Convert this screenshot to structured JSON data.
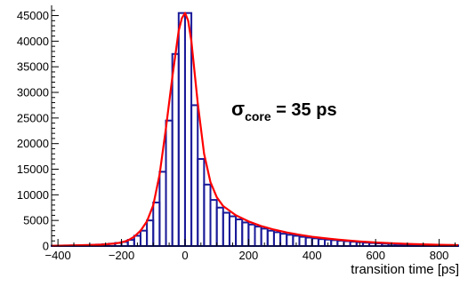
{
  "chart_data": {
    "type": "histogram",
    "xlabel": "transition time [ps]",
    "ylabel": "",
    "title": "",
    "xlim": [
      -420,
      860
    ],
    "ylim": [
      0,
      47000
    ],
    "x_ticks": [
      -400,
      -200,
      0,
      200,
      400,
      600,
      800
    ],
    "y_ticks": [
      0,
      5000,
      10000,
      15000,
      20000,
      25000,
      30000,
      35000,
      40000,
      45000
    ],
    "x_tick_labels": [
      "−400",
      "−200",
      "0",
      "200",
      "400",
      "600",
      "800"
    ],
    "y_tick_labels": [
      "0",
      "5000",
      "10000",
      "15000",
      "20000",
      "25000",
      "30000",
      "35000",
      "40000",
      "45000"
    ],
    "grid": false,
    "legend": "none",
    "annotation": {
      "symbol": "σ",
      "subscript": "core",
      "text": " = 35 ps"
    },
    "colors": {
      "histogram": "#1a1a99",
      "fit": "#ff0000",
      "axis": "#000000"
    },
    "histogram": {
      "bin_width": 20,
      "bins_left": [
        -420,
        -400,
        -380,
        -360,
        -340,
        -320,
        -300,
        -280,
        -260,
        -240,
        -220,
        -200,
        -180,
        -160,
        -140,
        -120,
        -100,
        -80,
        -60,
        -40,
        -20,
        0,
        20,
        40,
        60,
        80,
        100,
        120,
        140,
        160,
        180,
        200,
        220,
        240,
        260,
        280,
        300,
        320,
        340,
        360,
        380,
        400,
        420,
        440,
        460,
        480,
        500,
        520,
        540,
        560,
        580,
        600,
        620,
        640,
        660,
        680,
        700,
        720,
        740,
        760,
        780,
        800,
        820,
        840
      ],
      "counts": [
        50,
        80,
        100,
        120,
        150,
        180,
        220,
        280,
        350,
        450,
        600,
        800,
        1200,
        2000,
        3000,
        5000,
        8500,
        14500,
        24500,
        37500,
        45500,
        45500,
        27500,
        17000,
        12000,
        9000,
        7500,
        6500,
        5800,
        5200,
        4600,
        4200,
        3800,
        3400,
        3000,
        2700,
        2400,
        2200,
        2000,
        1800,
        1650,
        1500,
        1350,
        1250,
        1150,
        1050,
        950,
        850,
        750,
        650,
        580,
        520,
        460,
        400,
        360,
        320,
        280,
        250,
        220,
        200,
        180,
        160,
        140,
        120
      ]
    },
    "fit": {
      "x": [
        -420,
        -360,
        -300,
        -260,
        -220,
        -200,
        -180,
        -160,
        -140,
        -120,
        -100,
        -80,
        -60,
        -40,
        -20,
        -10,
        0,
        10,
        20,
        40,
        60,
        80,
        100,
        120,
        160,
        200,
        240,
        280,
        320,
        360,
        400,
        450,
        500,
        550,
        600,
        650,
        700,
        750,
        800,
        860
      ],
      "y": [
        50,
        100,
        200,
        300,
        500,
        700,
        1100,
        1800,
        3000,
        4800,
        8000,
        14000,
        23000,
        33000,
        42000,
        44500,
        45500,
        44000,
        40000,
        28000,
        18000,
        12500,
        9500,
        7800,
        6000,
        4800,
        3900,
        3200,
        2650,
        2200,
        1800,
        1450,
        1150,
        900,
        700,
        550,
        420,
        330,
        250,
        180
      ]
    }
  }
}
